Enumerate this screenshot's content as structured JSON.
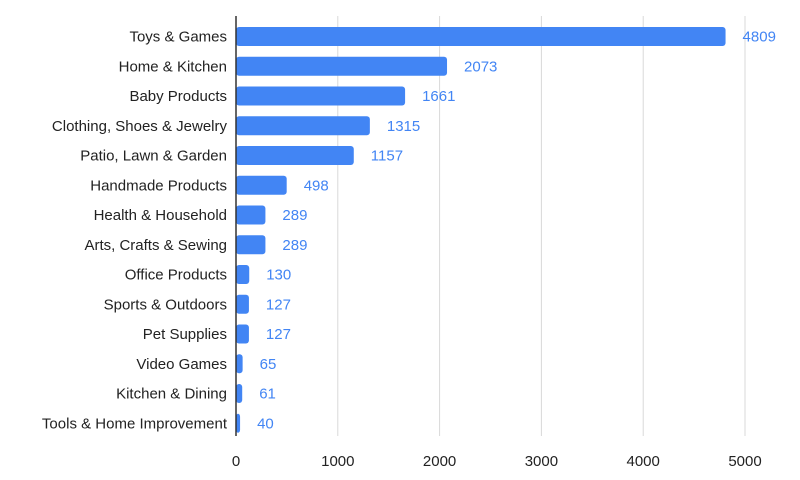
{
  "chart_data": {
    "type": "bar",
    "orientation": "horizontal",
    "categories": [
      "Toys & Games",
      "Home & Kitchen",
      "Baby Products",
      "Clothing, Shoes & Jewelry",
      "Patio, Lawn & Garden",
      "Handmade Products",
      "Health & Household",
      "Arts, Crafts & Sewing",
      "Office Products",
      "Sports & Outdoors",
      "Pet Supplies",
      "Video Games",
      "Kitchen & Dining",
      "Tools & Home Improvement"
    ],
    "values": [
      4809,
      2073,
      1661,
      1315,
      1157,
      498,
      289,
      289,
      130,
      127,
      127,
      65,
      61,
      40
    ],
    "value_labels": [
      "4809",
      "2073",
      "1661",
      "1315",
      "1157",
      "498",
      "289",
      "289",
      "130",
      "127",
      "127",
      "65",
      "61",
      "40"
    ],
    "x_ticks": [
      0,
      1000,
      2000,
      3000,
      4000,
      5000
    ],
    "x_tick_labels": [
      "0",
      "1000",
      "2000",
      "3000",
      "4000",
      "5000"
    ],
    "xlim": [
      0,
      5000
    ],
    "grid": true,
    "legend": "none",
    "colors": {
      "bar": "#4285f4",
      "value_label": "#4285f4",
      "grid": "#d9d9d9",
      "axis": "#333333"
    }
  }
}
